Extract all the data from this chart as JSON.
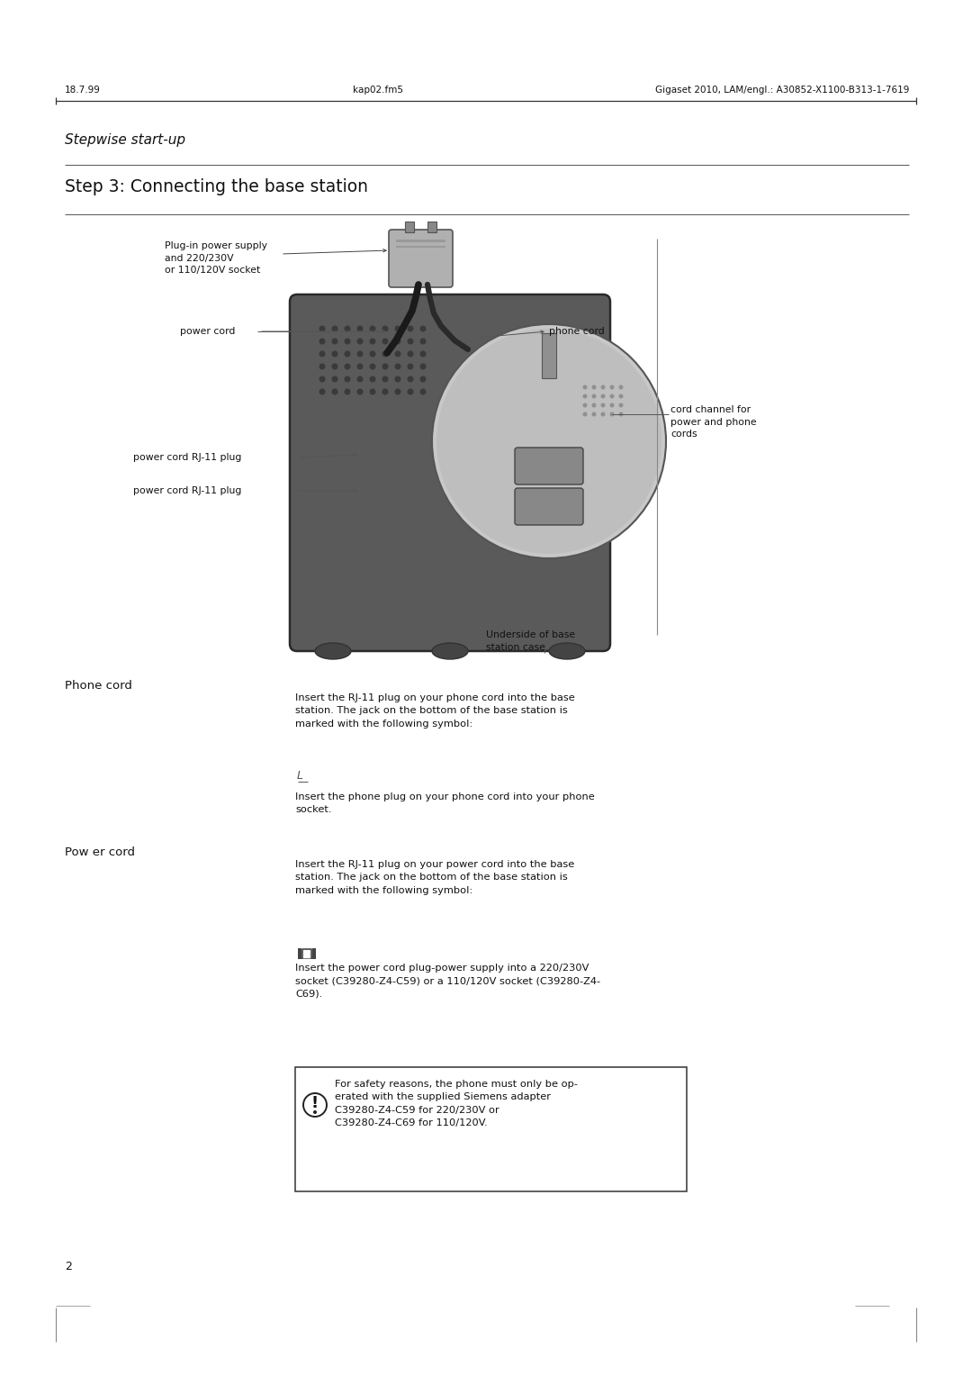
{
  "bg_color": "#ffffff",
  "header_text_left": "18.7.99",
  "header_text_mid": "kap02.fm5",
  "header_text_right": "Gigaset 2010, LAM/engl.: A30852-X1100-B313-1-7619",
  "section_title": "Stepwise start-up",
  "step_title": "Step 3: Connecting the base station",
  "page_number": "2",
  "label_plug_power": "Plug-in power supply\nand 220/230V\nor 110/120V socket",
  "label_power_cord": "power cord",
  "label_phone_cord": "phone cord",
  "label_cord_channel": "cord channel for\npower and phone\ncords",
  "label_rj11_1": "power cord RJ-11 plug",
  "label_rj11_2": "power cord RJ-11 plug",
  "label_underside": "Underside of base\nstation case",
  "phone_cord_heading": "Phone cord",
  "phone_cord_text1": "Insert the RJ-11 plug on your phone cord into the base\nstation. The jack on the bottom of the base station is\nmarked with the following symbol:",
  "phone_cord_text2": "Insert the phone plug on your phone cord into your phone\nsocket.",
  "power_cord_heading": "Pow er cord",
  "power_cord_text1": "Insert the RJ-11 plug on your power cord into the base\nstation. The jack on the bottom of the base station is\nmarked with the following symbol:",
  "power_cord_text2": "Insert the power cord plug-power supply into a 220/230V\nsocket (C39280-Z4-C59) or a 110/120V socket (C39280-Z4-\nC69).",
  "warning_text": "For safety reasons, the phone must only be op-\nerated with the supplied Siemens adapter\nC39280-Z4-C59 for 220/230V or\nC39280-Z4-C69 for 110/120V."
}
